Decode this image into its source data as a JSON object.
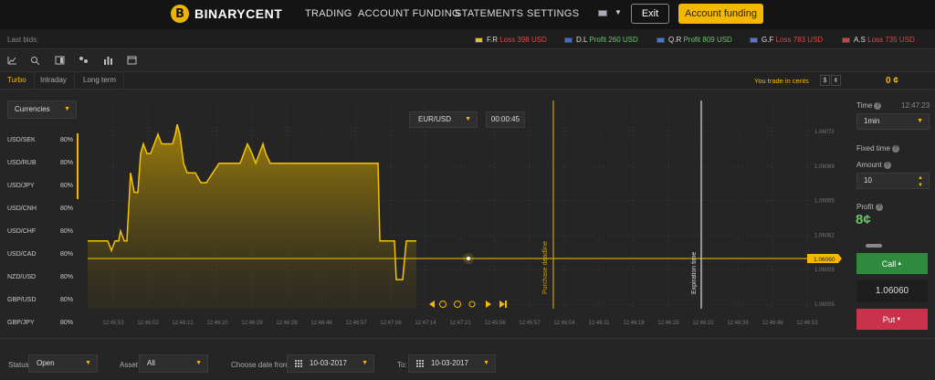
{
  "nav": {
    "logo_initial": "B",
    "logo_text": "BINARYCENT",
    "items": [
      "TRADING",
      "ACCOUNT FUNDING",
      "STATEMENTS",
      "SETTINGS"
    ],
    "exit_label": "Exit",
    "funding_label": "Account funding"
  },
  "bids": {
    "label": "Last bids:",
    "items": [
      {
        "name": "F.R",
        "status": "Loss",
        "amount": "398 USD",
        "type": "loss",
        "flag": "#e8c020"
      },
      {
        "name": "D.L",
        "status": "Profit",
        "amount": "260 USD",
        "type": "profit",
        "flag": "#3a6fd8"
      },
      {
        "name": "Q.R",
        "status": "Profit",
        "amount": "809 USD",
        "type": "profit",
        "flag": "#4a7ad0"
      },
      {
        "name": "G.F",
        "status": "Loss",
        "amount": "783 USD",
        "type": "loss",
        "flag": "#5a78c8"
      },
      {
        "name": "A.S",
        "status": "Loss",
        "amount": "735 USD",
        "type": "loss",
        "flag": "#d04040"
      }
    ]
  },
  "tabs": [
    "Turbo",
    "Intraday",
    "Long term"
  ],
  "cents": {
    "label": "You trade in cents",
    "dollar": "$",
    "cent": "¢"
  },
  "balance": "0 ¢",
  "currencies": {
    "label": "Currencies",
    "pairs": [
      {
        "name": "USD/SEK",
        "pct": "80%"
      },
      {
        "name": "USD/RUB",
        "pct": "80%"
      },
      {
        "name": "USD/JPY",
        "pct": "80%"
      },
      {
        "name": "USD/CNH",
        "pct": "80%"
      },
      {
        "name": "USD/CHF",
        "pct": "80%"
      },
      {
        "name": "USD/CAD",
        "pct": "80%"
      },
      {
        "name": "NZD/USD",
        "pct": "80%"
      },
      {
        "name": "GBP/USD",
        "pct": "80%"
      },
      {
        "name": "GBP/JPY",
        "pct": "80%"
      }
    ]
  },
  "asset": "EUR/USD",
  "timer": "00:00:45",
  "chart_data": {
    "type": "area",
    "x_labels": [
      "12:45:53",
      "12:46:02",
      "12:46:12",
      "12:46:20",
      "12:46:29",
      "12:46:38",
      "12:46:48",
      "12:46:57",
      "12:47:06",
      "12:47:14",
      "12:47:21",
      "12:45:56",
      "12:45:57",
      "12:46:04",
      "12:46:11",
      "12:46:18",
      "12:46:25",
      "12:46:32",
      "12:46:39",
      "12:46:46",
      "12:46:53"
    ],
    "y_labels": [
      "1.06072",
      "1.06069",
      "1.06065",
      "1.06062",
      "1.06059",
      "1.06055"
    ],
    "current_price": "1.06060",
    "purchase_label": "Purchase deadline",
    "expiration_label": "Expiration time",
    "ylim": [
      1.06053,
      1.06074
    ],
    "series_x": [
      0,
      12,
      16,
      22,
      26,
      30,
      34,
      36,
      40,
      43,
      47,
      51,
      55,
      58,
      61,
      65,
      69,
      73,
      77,
      81,
      85,
      89,
      93,
      96,
      98,
      101,
      105,
      109,
      113,
      118,
      124,
      130,
      137,
      144,
      151,
      158,
      163,
      167,
      171,
      175,
      180,
      184,
      188,
      192,
      195,
      200,
      204,
      209,
      214,
      220,
      226,
      233,
      240,
      247,
      254,
      260,
      266,
      272,
      278,
      284,
      290,
      296,
      302,
      308,
      313,
      316,
      318,
      320,
      323,
      326,
      328,
      330,
      333,
      336,
      338,
      340,
      343,
      345,
      349,
      352,
      356,
      360
    ],
    "series_y": [
      1.0606,
      1.0606,
      1.0606,
      1.0606,
      1.06059,
      1.0606,
      1.0606,
      1.06061,
      1.0606,
      1.0606,
      1.06067,
      1.06065,
      1.06065,
      1.06069,
      1.0607,
      1.06069,
      1.06069,
      1.0607,
      1.06071,
      1.0607,
      1.0607,
      1.0607,
      1.0607,
      1.06071,
      1.06072,
      1.06071,
      1.06068,
      1.06067,
      1.06067,
      1.06067,
      1.06066,
      1.06066,
      1.06067,
      1.06068,
      1.06068,
      1.06068,
      1.06068,
      1.06068,
      1.06069,
      1.0607,
      1.06069,
      1.06068,
      1.06069,
      1.0607,
      1.06069,
      1.06068,
      1.06068,
      1.06068,
      1.06068,
      1.06068,
      1.06068,
      1.06068,
      1.06068,
      1.06068,
      1.06068,
      1.06068,
      1.06068,
      1.06068,
      1.06068,
      1.06068,
      1.06068,
      1.06068,
      1.06068,
      1.06068,
      1.06068,
      1.06068,
      1.06068,
      1.0606,
      1.0606,
      1.0606,
      1.0606,
      1.0606,
      1.0606,
      1.0606,
      1.06056,
      1.06056,
      1.06056,
      1.06056,
      1.0606,
      1.0606,
      1.0606,
      1.0606
    ]
  },
  "trade": {
    "time_label": "Time",
    "clock": "12:47:23",
    "time_value": "1min",
    "fixed_label": "Fixed time",
    "amount_label": "Amount",
    "amount_value": "10",
    "profit_label": "Profit",
    "profit_value": "8¢",
    "call_label": "Call",
    "strike": "1.06060",
    "put_label": "Put"
  },
  "filters": {
    "status_label": "Status:",
    "status_value": "Open",
    "asset_label": "Asset",
    "asset_value": "All",
    "from_label": "Choose date from:",
    "from_value": "10-03-2017",
    "to_label": "To:",
    "to_value": "10-03-2017"
  },
  "colors": {
    "accent": "#f5b800",
    "call": "#2e8b3e",
    "put": "#c9324a",
    "line": "#f5c400"
  }
}
